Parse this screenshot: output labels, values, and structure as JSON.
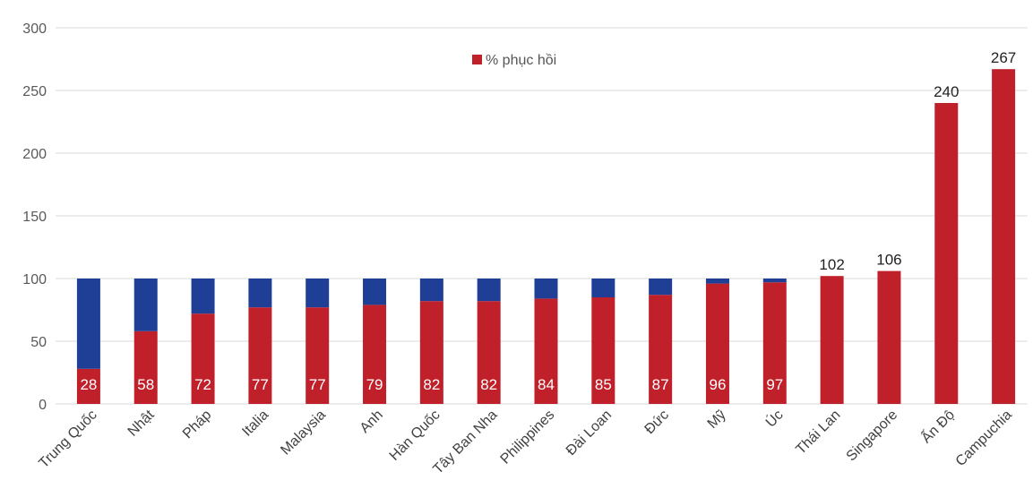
{
  "chart_data": {
    "type": "bar",
    "stacked": true,
    "categories": [
      "Trung Quốc",
      "Nhật",
      "Pháp",
      "Italia",
      "Malaysia",
      "Anh",
      "Hàn Quốc",
      "Tây Ban Nha",
      "Philippines",
      "Đài Loan",
      "Đức",
      "Mỹ",
      "Úc",
      "Thái Lan",
      "Singapore",
      "Ấn Độ",
      "Campuchia"
    ],
    "series": [
      {
        "name": "% phục hồi",
        "values": [
          28,
          58,
          72,
          77,
          77,
          79,
          82,
          82,
          84,
          85,
          87,
          96,
          97,
          102,
          106,
          240,
          267
        ],
        "color": "#c0202a"
      },
      {
        "values": [
          72,
          42,
          28,
          23,
          23,
          21,
          18,
          18,
          16,
          15,
          13,
          4,
          3,
          0,
          0,
          0,
          0
        ],
        "color": "#1f3f96"
      }
    ],
    "ylim": [
      0,
      300
    ],
    "yticks": [
      0,
      50,
      100,
      150,
      200,
      250,
      300
    ],
    "grid": true,
    "legend": "top-center",
    "title": "",
    "xlabel": "",
    "ylabel": ""
  }
}
